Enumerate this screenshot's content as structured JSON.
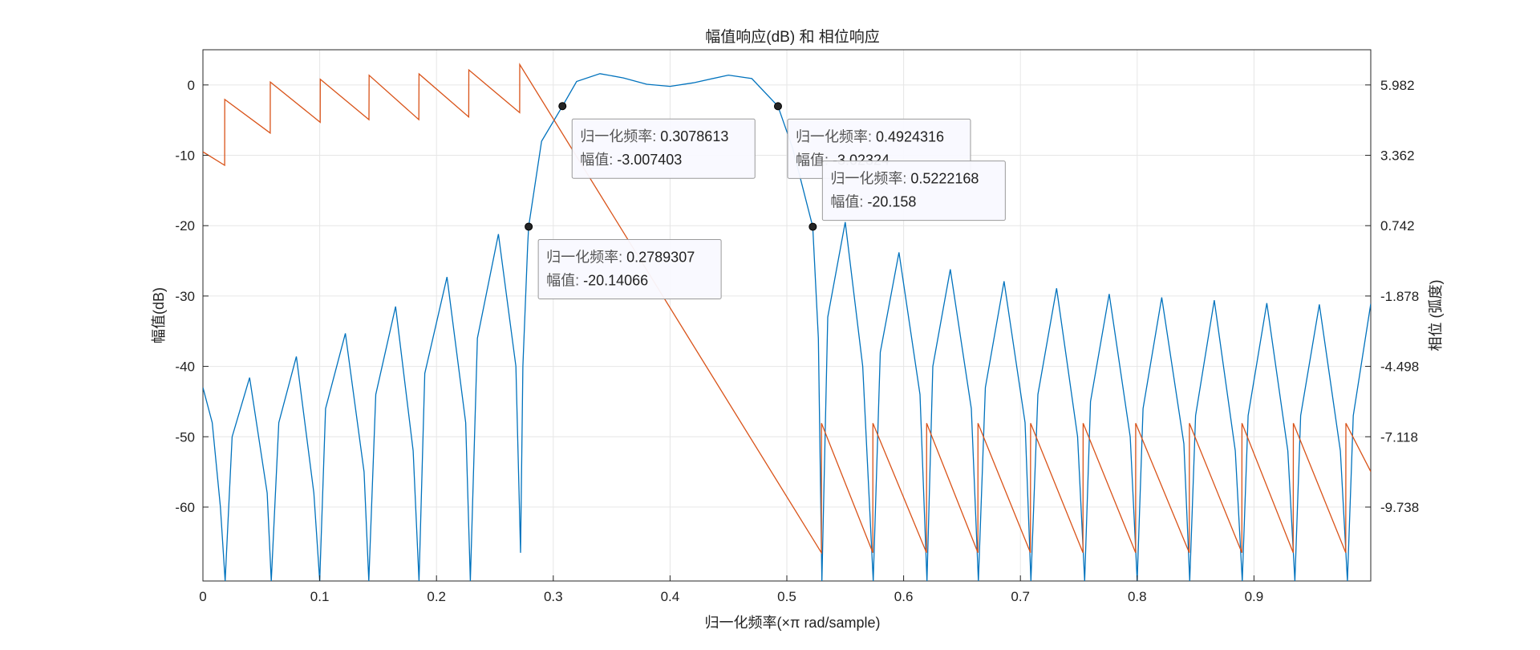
{
  "chart_data": {
    "type": "line",
    "title": "幅值响应(dB) 和 相位响应",
    "xlabel": "归一化频率(×π rad/sample)",
    "ylabel_left": "幅值(dB)",
    "ylabel_right": "相位 (弧度)",
    "xlim": [
      0,
      1
    ],
    "ylim_left": [
      -70.5,
      5
    ],
    "ylim_right": [
      -12.77,
      7.0
    ],
    "grid": true,
    "x_ticks": [
      "0",
      "0.1",
      "0.2",
      "0.3",
      "0.4",
      "0.5",
      "0.6",
      "0.7",
      "0.8",
      "0.9"
    ],
    "x_tick_values": [
      0,
      0.1,
      0.2,
      0.3,
      0.4,
      0.5,
      0.6,
      0.7,
      0.8,
      0.9
    ],
    "y_ticks_left": [
      "0",
      "-10",
      "-20",
      "-30",
      "-40",
      "-50",
      "-60"
    ],
    "y_tick_values_left": [
      0,
      -10,
      -20,
      -30,
      -40,
      -50,
      -60
    ],
    "y_ticks_right": [
      "5.982",
      "3.362",
      "0.742",
      "-1.878",
      "-4.498",
      "-7.118",
      "-9.738"
    ],
    "series": [
      {
        "axis": "left",
        "color": "#0072BD",
        "x": [
          0,
          0.008,
          0.015,
          0.019,
          0.025,
          0.04,
          0.055,
          0.0585,
          0.065,
          0.08,
          0.095,
          0.1,
          0.105,
          0.122,
          0.138,
          0.142,
          0.148,
          0.165,
          0.18,
          0.185,
          0.19,
          0.209,
          0.225,
          0.229,
          0.235,
          0.253,
          0.268,
          0.272,
          0.274,
          0.278,
          0.2789,
          0.29,
          0.3079,
          0.32,
          0.34,
          0.36,
          0.38,
          0.4,
          0.42,
          0.45,
          0.47,
          0.4924,
          0.505,
          0.5222,
          0.527,
          0.53,
          0.535,
          0.55,
          0.565,
          0.574,
          0.58,
          0.596,
          0.614,
          0.62,
          0.625,
          0.64,
          0.658,
          0.664,
          0.67,
          0.686,
          0.704,
          0.709,
          0.715,
          0.731,
          0.749,
          0.755,
          0.76,
          0.776,
          0.794,
          0.8,
          0.805,
          0.821,
          0.84,
          0.845,
          0.85,
          0.866,
          0.884,
          0.89,
          0.895,
          0.911,
          0.929,
          0.935,
          0.94,
          0.956,
          0.974,
          0.98,
          0.985,
          1.0
        ],
        "y": [
          -43,
          -48,
          -60,
          -70.5,
          -50,
          -41.6,
          -58,
          -70.5,
          -48,
          -38.6,
          -58,
          -70.5,
          -46,
          -35.3,
          -55,
          -70.5,
          -44,
          -31.5,
          -52,
          -70.5,
          -41,
          -27.3,
          -48,
          -70.5,
          -36,
          -21.2,
          -40,
          -66.5,
          -40,
          -23,
          -20.14,
          -8,
          -3.01,
          0.5,
          1.6,
          1.0,
          0.1,
          -0.2,
          0.3,
          1.4,
          0.9,
          -3.02,
          -9,
          -20.16,
          -36,
          -70.5,
          -33,
          -19.5,
          -40,
          -70.5,
          -38,
          -23.8,
          -44,
          -70.5,
          -40,
          -26.2,
          -46,
          -70.5,
          -43,
          -27.9,
          -48,
          -70.5,
          -44,
          -28.9,
          -50,
          -70.5,
          -45,
          -29.7,
          -50,
          -70.5,
          -46,
          -30.2,
          -51,
          -70.5,
          -47,
          -30.6,
          -52,
          -70.5,
          -47,
          -31.0,
          -52,
          -70.5,
          -47,
          -31.2,
          -52,
          -70.5,
          -47,
          -31.1
        ]
      },
      {
        "axis": "right",
        "color": "#D95319",
        "x": [
          0,
          0.0186,
          0.0187,
          0.0576,
          0.0577,
          0.1004,
          0.1005,
          0.1422,
          0.1423,
          0.1849,
          0.185,
          0.2276,
          0.2277,
          0.2712,
          0.2713,
          0.5296,
          0.5297,
          0.5736,
          0.5737,
          0.6196,
          0.6197,
          0.6636,
          0.6637,
          0.7086,
          0.7087,
          0.7536,
          0.7537,
          0.7986,
          0.7987,
          0.8446,
          0.8447,
          0.8896,
          0.8897,
          0.9336,
          0.9337,
          0.9786,
          0.9787,
          1.0
        ],
        "y": [
          3.2,
          2.7,
          5.15,
          3.9,
          5.8,
          4.3,
          5.9,
          4.4,
          6.05,
          4.4,
          6.1,
          4.5,
          6.25,
          4.66,
          6.45,
          -11.72,
          -6.9,
          -11.72,
          -6.9,
          -11.72,
          -6.9,
          -11.72,
          -6.9,
          -11.72,
          -6.9,
          -11.72,
          -6.9,
          -11.72,
          -6.9,
          -11.72,
          -6.9,
          -11.72,
          -6.9,
          -11.72,
          -6.9,
          -11.72,
          -6.9,
          -8.7
        ]
      }
    ],
    "datatips": [
      {
        "x": 0.3078613,
        "y": -3.007403,
        "line1_label": "归一化频率: ",
        "line1_value": "0.3078613",
        "line2_label": "幅值: ",
        "line2_value": "-3.007403"
      },
      {
        "x": 0.4924316,
        "y": -3.02324,
        "line1_label": "归一化频率: ",
        "line1_value": "0.4924316",
        "line2_label": "幅值: ",
        "line2_value": "-3.02324"
      },
      {
        "x": 0.5222168,
        "y": -20.158,
        "line1_label": "归一化频率: ",
        "line1_value": "0.5222168",
        "line2_label": "幅值: ",
        "line2_value": "-20.158"
      },
      {
        "x": 0.2789307,
        "y": -20.14066,
        "line1_label": "归一化频率: ",
        "line1_value": "0.2789307",
        "line2_label": "幅值: ",
        "line2_value": "-20.14066"
      }
    ]
  }
}
